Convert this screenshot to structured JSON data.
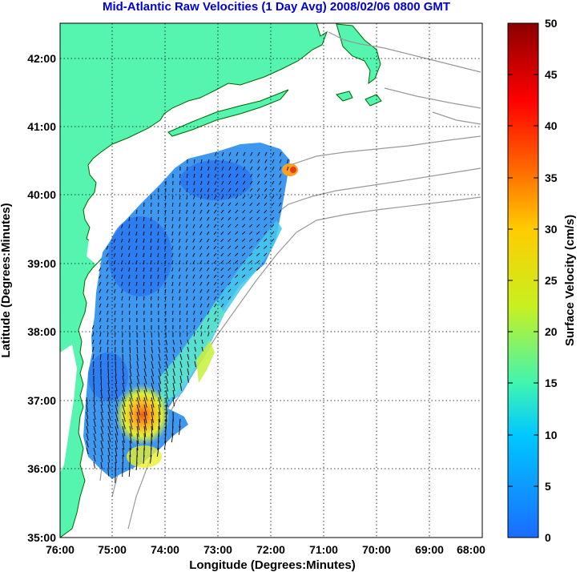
{
  "title": "Mid-Atlantic Raw Velocities (1 Day Avg) 2008/02/06 0800 GMT",
  "map": {
    "x_axis": {
      "label": "Longitude (Degrees:Minutes)",
      "ticks": [
        "76:00",
        "75:00",
        "74:00",
        "73:00",
        "72:00",
        "71:00",
        "70:00",
        "69:00",
        "68:00"
      ]
    },
    "y_axis": {
      "label": "Latitude (Degrees:Minutes)",
      "ticks": [
        "42:00",
        "41:00",
        "40:00",
        "39:00",
        "38:00",
        "37:00",
        "36:00",
        "35:00"
      ]
    },
    "grid": "dotted",
    "colors": {
      "land": "#55f5b0",
      "ocean": "#ffffff",
      "bathymetry": "#999999",
      "coastline": "#006600",
      "vectors": "#000000"
    }
  },
  "colorbar": {
    "label": "Surface Velocity (cm/s)",
    "ticks": [
      "50",
      "45",
      "40",
      "35",
      "30",
      "25",
      "20",
      "15",
      "10",
      "5",
      "0"
    ],
    "colors": [
      "#1a6cff",
      "#00c8ff",
      "#40f5b0",
      "#c8f020",
      "#ffcc00",
      "#ff6600",
      "#ff0000",
      "#8b0000"
    ]
  }
}
